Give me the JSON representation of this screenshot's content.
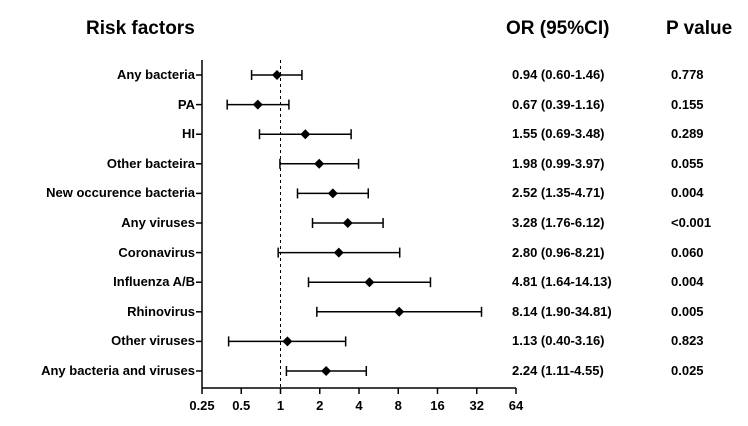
{
  "headers": {
    "risk_factors": "Risk factors",
    "or_ci": "OR (95%CI)",
    "p_value": "P value"
  },
  "chart_data": {
    "type": "forest",
    "xscale": "log2",
    "xlim": [
      0.25,
      64
    ],
    "reference_line": 1,
    "xticks": [
      "0.25",
      "0.5",
      "1",
      "2",
      "4",
      "8",
      "16",
      "32",
      "64"
    ],
    "rows": [
      {
        "label": "Any bacteria",
        "or": 0.94,
        "lo": 0.6,
        "hi": 1.46,
        "or_text": "0.94 (0.60-1.46)",
        "p": "0.778"
      },
      {
        "label": "PA",
        "or": 0.67,
        "lo": 0.39,
        "hi": 1.16,
        "or_text": "0.67 (0.39-1.16)",
        "p": "0.155"
      },
      {
        "label": "HI",
        "or": 1.55,
        "lo": 0.69,
        "hi": 3.48,
        "or_text": "1.55 (0.69-3.48)",
        "p": "0.289"
      },
      {
        "label": "Other bacteira",
        "or": 1.98,
        "lo": 0.99,
        "hi": 3.97,
        "or_text": "1.98 (0.99-3.97)",
        "p": "0.055"
      },
      {
        "label": "New occurence bacteria",
        "or": 2.52,
        "lo": 1.35,
        "hi": 4.71,
        "or_text": "2.52 (1.35-4.71)",
        "p": "0.004"
      },
      {
        "label": "Any viruses",
        "or": 3.28,
        "lo": 1.76,
        "hi": 6.12,
        "or_text": "3.28 (1.76-6.12)",
        "p": "<0.001"
      },
      {
        "label": "Coronavirus",
        "or": 2.8,
        "lo": 0.96,
        "hi": 8.21,
        "or_text": "2.80 (0.96-8.21)",
        "p": "0.060"
      },
      {
        "label": "Influenza A/B",
        "or": 4.81,
        "lo": 1.64,
        "hi": 14.13,
        "or_text": "4.81 (1.64-14.13)",
        "p": "0.004"
      },
      {
        "label": "Rhinovirus",
        "or": 8.14,
        "lo": 1.9,
        "hi": 34.81,
        "or_text": "8.14 (1.90-34.81)",
        "p": "0.005"
      },
      {
        "label": "Other viruses",
        "or": 1.13,
        "lo": 0.4,
        "hi": 3.16,
        "or_text": "1.13 (0.40-3.16)",
        "p": "0.823"
      },
      {
        "label": "Any bacteria and viruses",
        "or": 2.24,
        "lo": 1.11,
        "hi": 4.55,
        "or_text": "2.24 (1.11-4.55)",
        "p": "0.025"
      }
    ]
  }
}
